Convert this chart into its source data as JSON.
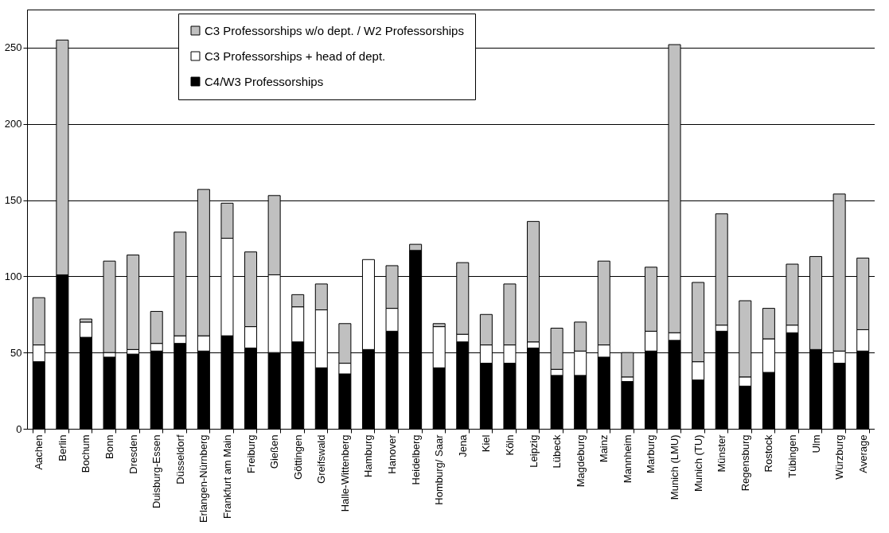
{
  "chart_data": {
    "type": "bar",
    "stacked": true,
    "categories": [
      "Aachen",
      "Berlin",
      "Bochum",
      "Bonn",
      "Dresden",
      "Duisburg-Essen",
      "Düsseldorf",
      "Erlangen-Nürnberg",
      "Frankfurt am Main",
      "Freiburg",
      "Gießen",
      "Göttingen",
      "Greifswald",
      "Halle-Wittenberg",
      "Hamburg",
      "Hanover",
      "Heidelberg",
      "Homburg/ Saar",
      "Jena",
      "Kiel",
      "Köln",
      "Leipzig",
      "Lübeck",
      "Magdeburg",
      "Mainz",
      "Mannheim",
      "Marburg",
      "Munich (LMU)",
      "Munich (TU)",
      "Münster",
      "Regensburg",
      "Rostock",
      "Tübingen",
      "Ulm",
      "Würzburg",
      "Average"
    ],
    "series": [
      {
        "name": "C4/W3 Professorships",
        "color": "#000000",
        "values": [
          44,
          101,
          60,
          47,
          49,
          51,
          56,
          51,
          61,
          53,
          50,
          57,
          40,
          36,
          52,
          64,
          117,
          40,
          57,
          43,
          43,
          53,
          35,
          35,
          47,
          31,
          51,
          58,
          32,
          64,
          28,
          37,
          63,
          52,
          43,
          51
        ]
      },
      {
        "name": "C3 Professorships + head of dept.",
        "color": "#ffffff",
        "values": [
          11,
          null,
          10,
          3,
          3,
          5,
          5,
          10,
          64,
          14,
          51,
          23,
          38,
          7,
          59,
          15,
          null,
          27,
          5,
          12,
          12,
          4,
          4,
          16,
          8,
          3,
          13,
          5,
          12,
          4,
          6,
          22,
          5,
          null,
          8,
          14
        ]
      },
      {
        "name": "C3 Professorships w/o dept. / W2 Professorships",
        "color": "#c0c0c0",
        "values": [
          31,
          154,
          2,
          60,
          62,
          21,
          68,
          96,
          23,
          49,
          52,
          8,
          17,
          26,
          null,
          28,
          4,
          2,
          47,
          20,
          40,
          79,
          27,
          19,
          55,
          16,
          42,
          189,
          52,
          73,
          50,
          20,
          40,
          61,
          103,
          47
        ]
      }
    ],
    "ylim": [
      0,
      275
    ],
    "yticks": [
      0,
      50,
      100,
      150,
      200,
      250
    ],
    "grid": "y",
    "legend": "top"
  }
}
